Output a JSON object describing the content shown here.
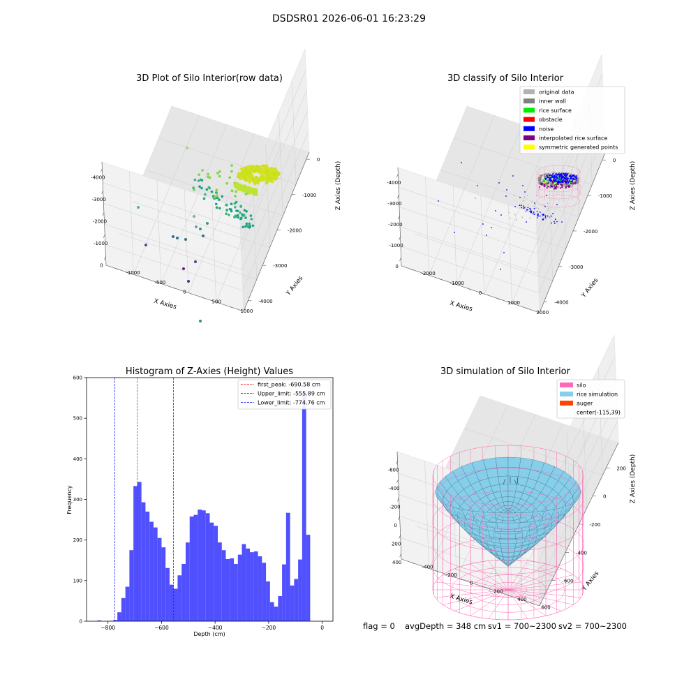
{
  "figure": {
    "suptitle": "DSDSR01 2026-06-01 16:23:29",
    "footer": {
      "flag": "flag = 0",
      "avg": "avgDepth = 348 cm",
      "sv1": "sv1 = 700~2300",
      "sv2": "sv2 = 700~2300"
    }
  },
  "chart_data": [
    {
      "type": "scatter",
      "title": "3D Plot of Silo Interior(row data)",
      "projection": "3d",
      "xlabel": "X Axies",
      "ylabel": "Y Axies",
      "zlabel": "Z Axies (Depth)",
      "x_ticks": [
        "-4000",
        "-3000",
        "-2000",
        "-1000",
        "0"
      ],
      "y_ticks": [
        "-1000",
        "-500",
        "0",
        "500",
        "1000"
      ],
      "z_ticks": [
        "0",
        "-1000",
        "-2000",
        "-3000",
        "-4000"
      ],
      "xlim": [
        -4300,
        400
      ],
      "ylim": [
        -1150,
        1250
      ],
      "zlim": [
        -4300,
        200
      ],
      "colormap": "viridis (by depth)",
      "colors": {
        "low": "#440154",
        "mid": "#21918c",
        "high": "#fde725",
        "surface": "#c8e020"
      },
      "grid": true
    },
    {
      "type": "scatter",
      "title": "3D classify of Silo Interior",
      "projection": "3d",
      "xlabel": "X Axies",
      "ylabel": "Y Axies",
      "zlabel": "Z Axies (Depth)",
      "x_ticks": [
        "-4000",
        "-3000",
        "-2000",
        "-1000",
        "0"
      ],
      "y_ticks": [
        "-2000",
        "-1000",
        "0",
        "1000",
        "2000"
      ],
      "z_ticks": [
        "0",
        "-1000",
        "-2000",
        "-3000",
        "-4000"
      ],
      "xlim": [
        -4300,
        400
      ],
      "ylim": [
        -2300,
        2500
      ],
      "zlim": [
        -4300,
        200
      ],
      "legend": [
        {
          "label": "original data",
          "color": "#b3b3b3"
        },
        {
          "label": "inner wall",
          "color": "#808080"
        },
        {
          "label": "rice surface",
          "color": "#00ee00"
        },
        {
          "label": "obstacle",
          "color": "#ff0000"
        },
        {
          "label": "noise",
          "color": "#0000ff"
        },
        {
          "label": "interpolated rice surface",
          "color": "#800080"
        },
        {
          "label": "symmetric generated points",
          "color": "#ffff00"
        }
      ],
      "legend_position": "top-right",
      "grid": true
    },
    {
      "type": "bar",
      "title": "Histogram of Z-Axies (Height) Values",
      "xlabel": "Depth (cm)",
      "ylabel": "Frequency",
      "bin_width": 15,
      "bins": [
        [
          -840,
          2
        ],
        [
          -825,
          0
        ],
        [
          -810,
          0
        ],
        [
          -795,
          1
        ],
        [
          -780,
          3
        ],
        [
          -765,
          22
        ],
        [
          -750,
          57
        ],
        [
          -735,
          85
        ],
        [
          -720,
          175
        ],
        [
          -705,
          333
        ],
        [
          -690,
          343
        ],
        [
          -675,
          293
        ],
        [
          -660,
          270
        ],
        [
          -645,
          245
        ],
        [
          -630,
          231
        ],
        [
          -615,
          205
        ],
        [
          -600,
          182
        ],
        [
          -585,
          131
        ],
        [
          -570,
          90
        ],
        [
          -555,
          80
        ],
        [
          -540,
          113
        ],
        [
          -525,
          141
        ],
        [
          -510,
          194
        ],
        [
          -495,
          258
        ],
        [
          -480,
          262
        ],
        [
          -465,
          275
        ],
        [
          -450,
          273
        ],
        [
          -435,
          266
        ],
        [
          -420,
          243
        ],
        [
          -405,
          235
        ],
        [
          -390,
          194
        ],
        [
          -375,
          175
        ],
        [
          -360,
          153
        ],
        [
          -345,
          155
        ],
        [
          -330,
          141
        ],
        [
          -315,
          164
        ],
        [
          -300,
          190
        ],
        [
          -285,
          179
        ],
        [
          -270,
          170
        ],
        [
          -255,
          172
        ],
        [
          -240,
          160
        ],
        [
          -225,
          144
        ],
        [
          -210,
          98
        ],
        [
          -195,
          47
        ],
        [
          -180,
          36
        ],
        [
          -165,
          62
        ],
        [
          -150,
          140
        ],
        [
          -135,
          267
        ],
        [
          -120,
          88
        ],
        [
          -105,
          104
        ],
        [
          -90,
          152
        ],
        [
          -75,
          566
        ],
        [
          -60,
          213
        ]
      ],
      "xlim": [
        -880,
        40
      ],
      "ylim": [
        0,
        600
      ],
      "x_ticks": [
        -800,
        -600,
        -400,
        -200,
        0
      ],
      "y_ticks": [
        0,
        100,
        200,
        300,
        400,
        500,
        600
      ],
      "bar_color": "#5050ff",
      "vlines": [
        {
          "label": "first_peak: -690.58 cm",
          "value": -690.58,
          "color": "#ff0000"
        },
        {
          "label": "Upper_limit: -555.89 cm",
          "value": -555.89,
          "color": "#0000ff"
        },
        {
          "label": "Lower_limit: -774.76 cm",
          "value": -774.76,
          "color": "#0000ff"
        }
      ],
      "legend_position": "top-right"
    },
    {
      "type": "surface",
      "title": "3D simulation of Silo Interior",
      "projection": "3d",
      "xlabel": "X Axies",
      "ylabel": "Y Axies",
      "zlabel": "Z Axies (Depth)",
      "x_ticks": [
        "-600",
        "-400",
        "-200",
        "0",
        "200",
        "400"
      ],
      "y_ticks": [
        "-400",
        "-200",
        "0",
        "200",
        "400",
        "600"
      ],
      "z_ticks": [
        "200",
        "0",
        "-200",
        "-400",
        "-600"
      ],
      "xlim": [
        -700,
        460
      ],
      "ylim": [
        -480,
        680
      ],
      "zlim": [
        -780,
        380
      ],
      "silo_center": [
        -115,
        39
      ],
      "legend": [
        {
          "label": "silo",
          "color": "#ff69b4"
        },
        {
          "label": "rice simulation",
          "color": "#87ceeb"
        },
        {
          "label": "auger",
          "color": "#ff4500"
        },
        {
          "label": "center(-115,39)",
          "color": ""
        }
      ],
      "legend_position": "top-right",
      "grid": true
    }
  ]
}
